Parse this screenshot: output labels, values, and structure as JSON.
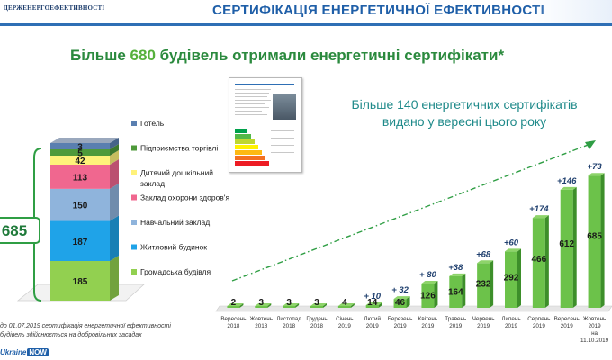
{
  "header": {
    "agency": "ДЕРЖЕНЕРГОЕФЕКТИВНОСТІ",
    "title": "СЕРТИФІКАЦІЯ ЕНЕРГЕТИЧНОЇ ЕФЕКТИВНОСТІ"
  },
  "headline": {
    "prefix": "Більше ",
    "number": "680",
    "suffix": " будівель отримали енергетичні сертифікати*"
  },
  "sub_headline": "Більше 140 енергетичних сертифікатів видано у вересні цього року",
  "note": {
    "line1": "до  01.07.2019  сертифікація  енергетичної  ефективності",
    "line2": "будівель здійснюється на добровільних засадах"
  },
  "footer_logo": {
    "text": "Ukraine",
    "badge": "NOW"
  },
  "colors": {
    "title_blue": "#1f5fa8",
    "headline_green": "#2b8a3e",
    "bar_green": "#6cc24a",
    "bar_green_dark": "#3d8f2a",
    "arrow_green": "#2f9e44",
    "total_border": "#2f9e44",
    "total_text": "#1f7a3a"
  },
  "chart_data": [
    {
      "type": "bar",
      "stacked": true,
      "orientation": "vertical",
      "total_label": "685",
      "series": [
        {
          "name": "Громадська будівля",
          "value": 185,
          "color": "#92d050"
        },
        {
          "name": "Житловий будинок",
          "value": 187,
          "color": "#1fa3e8"
        },
        {
          "name": "Навчальний заклад",
          "value": 150,
          "color": "#8fb4dc"
        },
        {
          "name": "Заклад охорони здоров'я",
          "value": 113,
          "color": "#f0678f"
        },
        {
          "name": "Дитячий дошкільний заклад",
          "value": 42,
          "color": "#fff27a"
        },
        {
          "name": "Підприємства торгівлі",
          "value": 5,
          "color": "#4e9a3a"
        },
        {
          "name": "Готель",
          "value": 3,
          "color": "#5a7fb0"
        }
      ],
      "legend_placement": "right"
    },
    {
      "type": "bar",
      "orientation": "vertical",
      "categories": [
        "Вересень 2018",
        "Жовтень 2018",
        "Листопад 2018",
        "Грудень 2018",
        "Січень 2019",
        "Лютий 2019",
        "Березень 2019",
        "Квітень 2019",
        "Травень 2019",
        "Червень 2019",
        "Липень 2019",
        "Серпень 2019",
        "Вересень 2019",
        "Жовтень 2019 на 11.10.2019"
      ],
      "values": [
        2,
        3,
        3,
        3,
        4,
        14,
        46,
        126,
        164,
        232,
        292,
        466,
        612,
        685
      ],
      "increments": [
        "",
        "",
        "",
        "",
        "",
        "+ 10",
        "+ 32",
        "+ 80",
        "+38",
        "+68",
        "+60",
        "+174",
        "+146",
        "+73"
      ],
      "grid": false,
      "trend_arrow": true
    }
  ]
}
